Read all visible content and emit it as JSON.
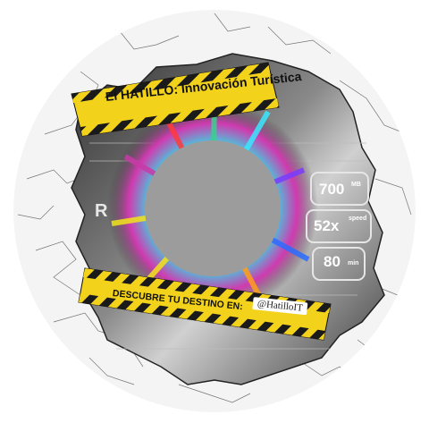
{
  "banner_top": {
    "text": "El HATILLO: Innovación Turística"
  },
  "banner_bottom": {
    "text": "DESCUBRE TU DESTINO EN:",
    "handle": "@HatilloIT"
  },
  "specs": [
    {
      "value": "700",
      "unit": "MB"
    },
    {
      "value": "52x",
      "unit": "speed"
    },
    {
      "value": "80",
      "unit": "min"
    }
  ],
  "left_letter": "R",
  "colors": {
    "tape_yellow": "#f2d21b",
    "tape_black": "#1a1a1a",
    "metal_dark": "#4a4a4a",
    "metal_light": "#9a9a9a",
    "hub_gray": "#9c9c9c"
  }
}
